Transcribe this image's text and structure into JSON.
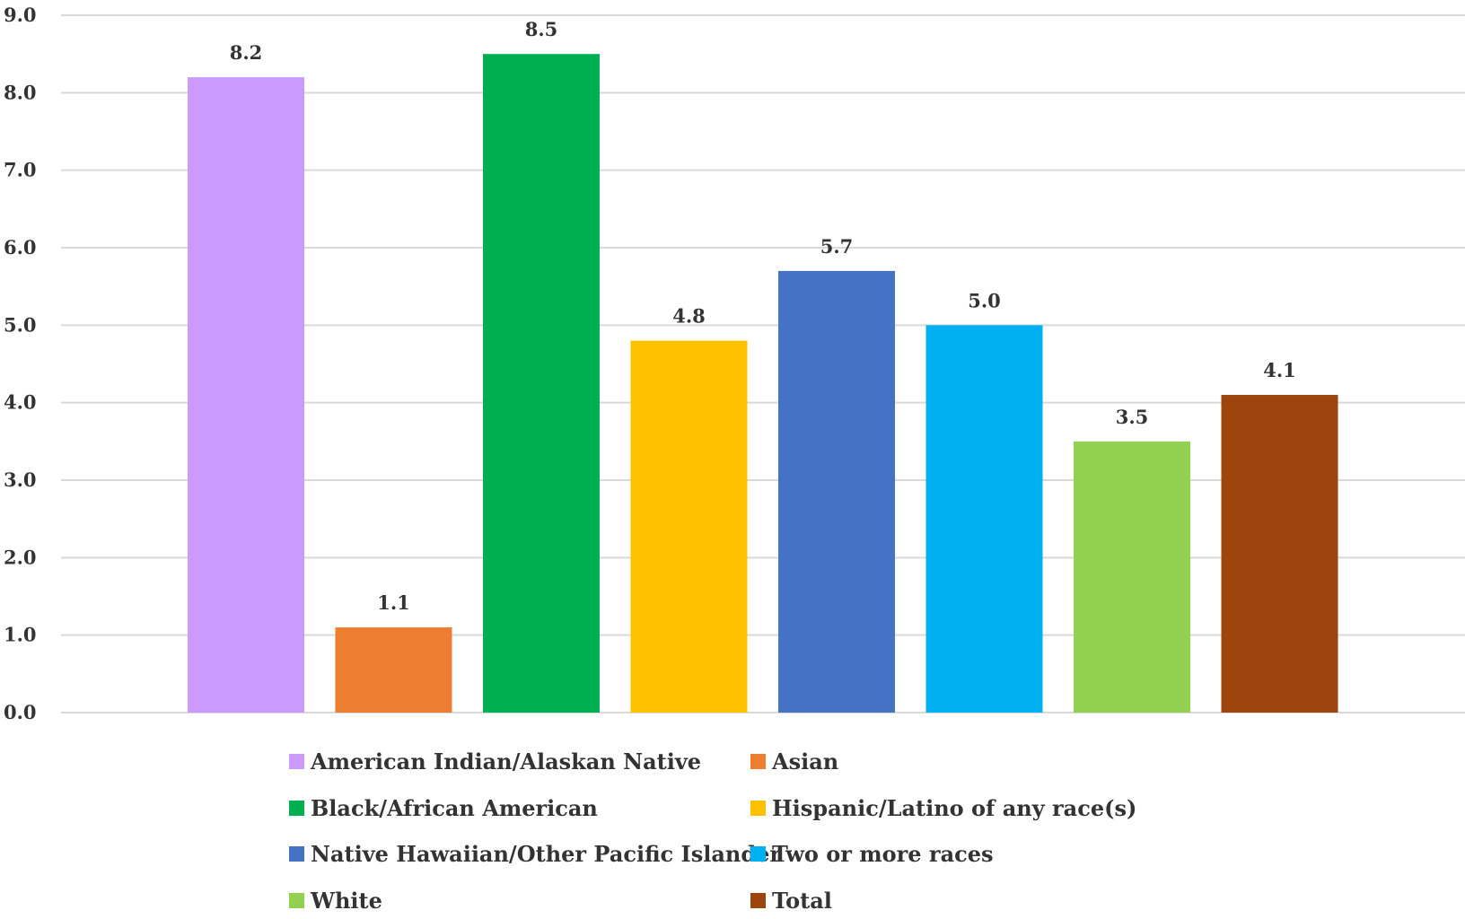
{
  "chart_data": {
    "type": "bar",
    "title": "",
    "xlabel": "",
    "ylabel": "",
    "ylim": [
      0,
      9
    ],
    "yticks": [
      "0.0",
      "1.0",
      "2.0",
      "3.0",
      "4.0",
      "5.0",
      "6.0",
      "7.0",
      "8.0",
      "9.0"
    ],
    "grid": true,
    "legend_position": "bottom",
    "series": [
      {
        "name": "American Indian/Alaskan Native",
        "value": 8.2,
        "label": "8.2",
        "color": "#cc99ff"
      },
      {
        "name": "Asian",
        "value": 1.1,
        "label": "1.1",
        "color": "#ed7d31"
      },
      {
        "name": "Black/African American",
        "value": 8.5,
        "label": "8.5",
        "color": "#00b050"
      },
      {
        "name": "Hispanic/Latino of any race(s)",
        "value": 4.8,
        "label": "4.8",
        "color": "#ffc000"
      },
      {
        "name": "Native Hawaiian/Other Pacific Islander",
        "value": 5.7,
        "label": "5.7",
        "color": "#4472c4"
      },
      {
        "name": "Two or more races",
        "value": 5.0,
        "label": "5.0",
        "color": "#00b0f0"
      },
      {
        "name": "White",
        "value": 3.5,
        "label": "3.5",
        "color": "#92d050"
      },
      {
        "name": "Total",
        "value": 4.1,
        "label": "4.1",
        "color": "#9c450c"
      }
    ]
  }
}
